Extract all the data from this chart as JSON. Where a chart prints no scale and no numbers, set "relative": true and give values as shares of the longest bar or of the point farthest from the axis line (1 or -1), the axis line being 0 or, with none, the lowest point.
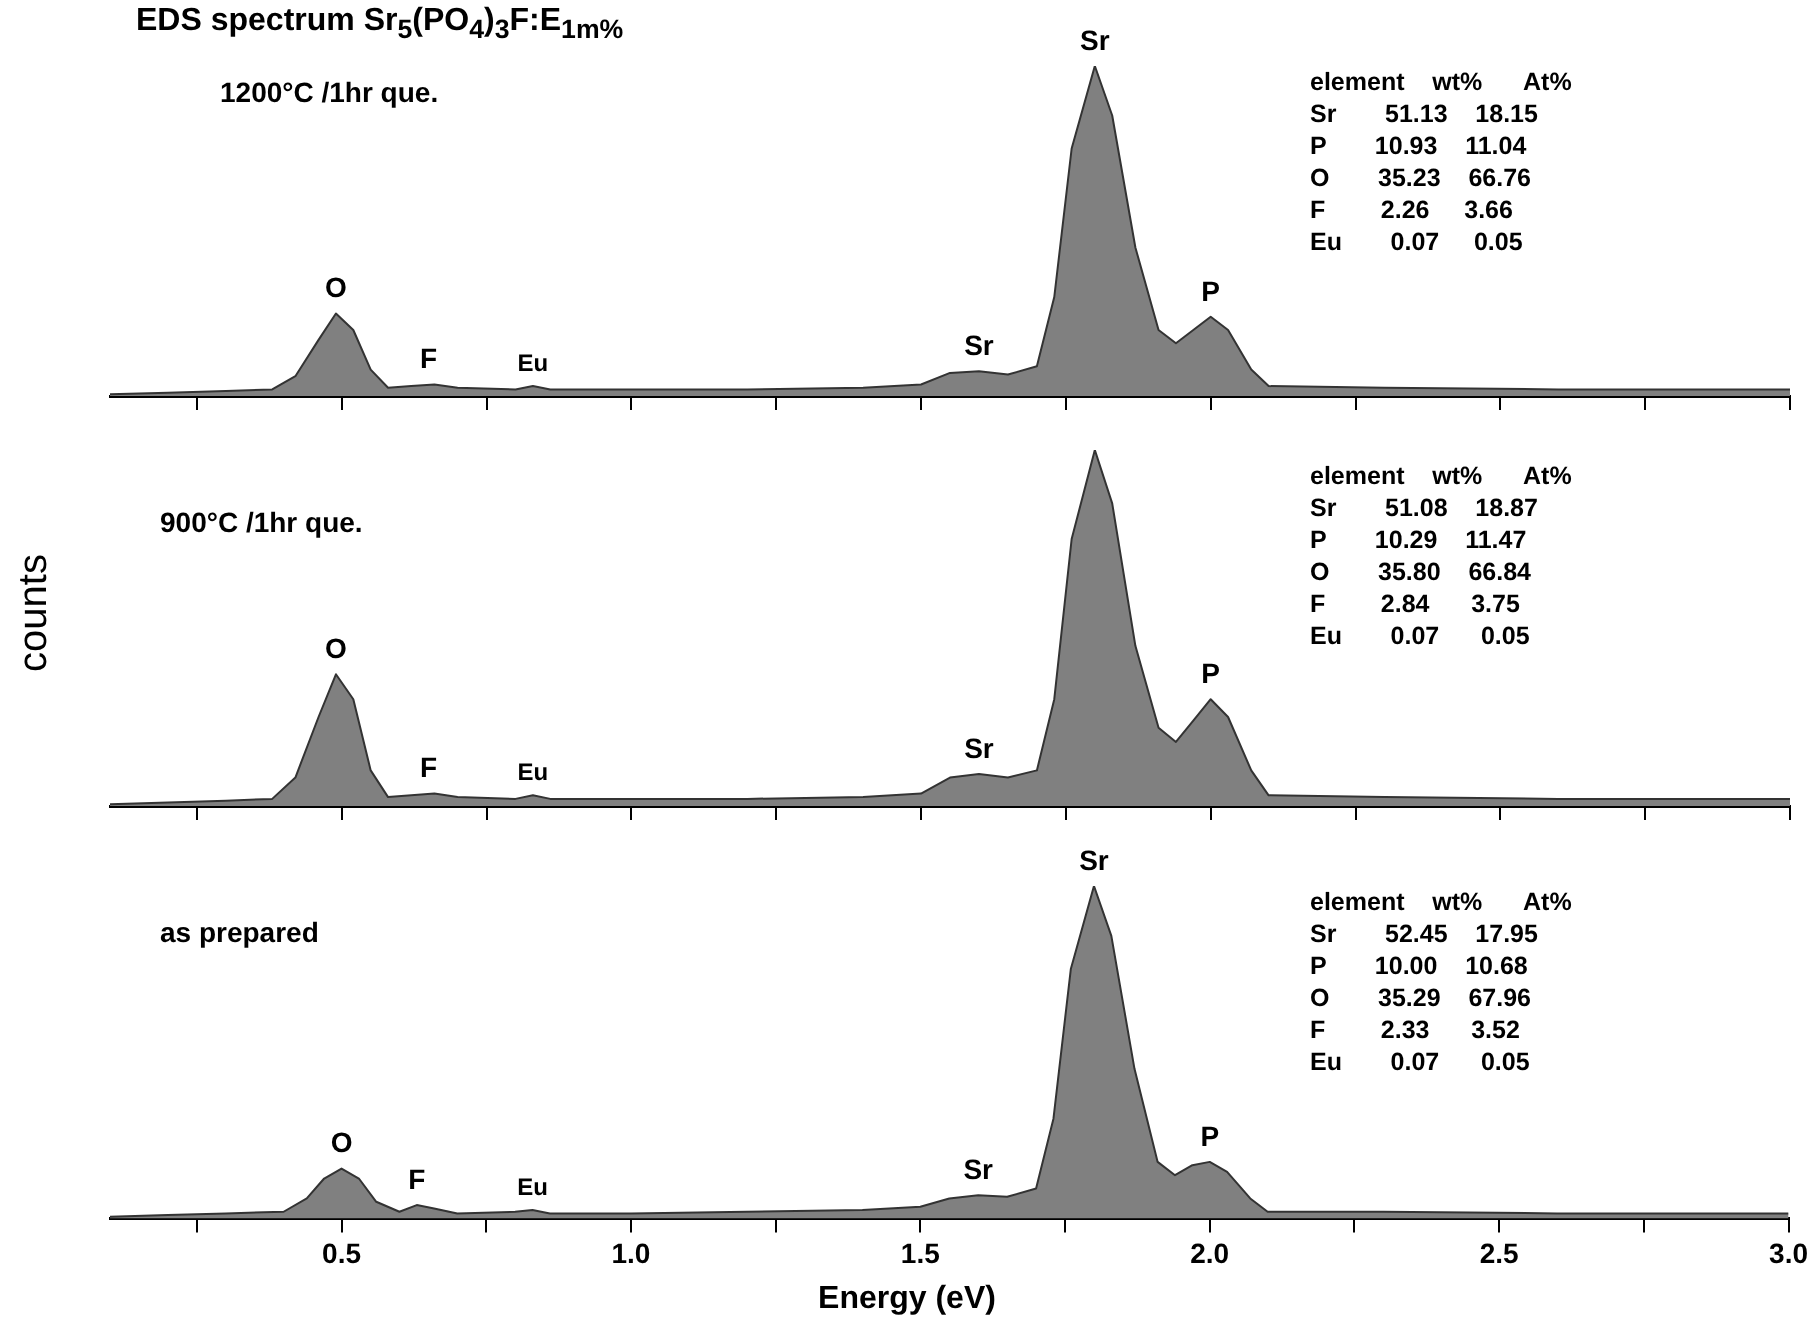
{
  "chart_data": [
    {
      "type": "area",
      "title": "EDS spectrum Sr$_{5}$(PO$_{4}$)$_{3}$F:E$_{1m%}$",
      "relative": true,
      "tick_labels": false,
      "xlim": [
        0.1,
        3.0
      ],
      "xticks": [
        {
          "value": 0.25,
          "label": null
        },
        {
          "value": 0.5,
          "label": null
        },
        {
          "value": 0.75,
          "label": null
        },
        {
          "value": 1,
          "label": null
        },
        {
          "value": 1.25,
          "label": null
        },
        {
          "value": 1.5,
          "label": null
        },
        {
          "value": 1.75,
          "label": null
        },
        {
          "value": 2,
          "label": null
        },
        {
          "value": 2.25,
          "label": null
        },
        {
          "value": 2.5,
          "label": null
        },
        {
          "value": 2.75,
          "label": null
        },
        {
          "value": 3,
          "label": null
        }
      ],
      "series": [
        {
          "color": "#808080",
          "x": [
            0.1,
            0.2,
            0.3,
            0.38,
            0.42,
            0.46,
            0.49,
            0.52,
            0.55,
            0.58,
            0.62,
            0.66,
            0.7,
            0.8,
            0.83,
            0.86,
            1.0,
            1.2,
            1.4,
            1.5,
            1.55,
            1.6,
            1.65,
            1.7,
            1.73,
            1.76,
            1.8,
            1.83,
            1.87,
            1.91,
            1.94,
            1.97,
            2.0,
            2.03,
            2.07,
            2.1,
            2.3,
            2.6,
            3.0
          ],
          "values": [
            0.005,
            0.01,
            0.015,
            0.02,
            0.06,
            0.17,
            0.25,
            0.2,
            0.08,
            0.025,
            0.03,
            0.035,
            0.025,
            0.02,
            0.03,
            0.02,
            0.02,
            0.02,
            0.025,
            0.035,
            0.07,
            0.075,
            0.065,
            0.09,
            0.3,
            0.75,
            1,
            0.85,
            0.45,
            0.2,
            0.16,
            0.2,
            0.24,
            0.2,
            0.08,
            0.03,
            0.025,
            0.02,
            0.02
          ]
        }
      ],
      "annotations": [
        "1200°C /1hr que.",
        {
          "text": "O",
          "x": 0.49,
          "y": 0.25
        },
        {
          "text": "F",
          "x": 0.65,
          "y": 0.035
        },
        {
          "text": "Eu",
          "x": 0.83,
          "y": 0.03
        },
        {
          "text": "Sr",
          "x": 1.6,
          "y": 0.075
        },
        {
          "text": "Sr",
          "x": 1.8,
          "y": 1
        },
        {
          "text": "P",
          "x": 2.0,
          "y": 0.24
        },
        "element    wt%      At%",
        "Sr       51.13    18.15",
        "P       10.93    11.04",
        "O       35.23    66.76",
        "F        2.26     3.66",
        "Eu       0.07     0.05"
      ]
    },
    {
      "type": "area",
      "ylabel": "counts",
      "relative": true,
      "tick_labels": false,
      "xlim": [
        0.1,
        3.0
      ],
      "xticks": [
        {
          "value": 0.25,
          "label": null
        },
        {
          "value": 0.5,
          "label": null
        },
        {
          "value": 0.75,
          "label": null
        },
        {
          "value": 1,
          "label": null
        },
        {
          "value": 1.25,
          "label": null
        },
        {
          "value": 1.5,
          "label": null
        },
        {
          "value": 1.75,
          "label": null
        },
        {
          "value": 2,
          "label": null
        },
        {
          "value": 2.25,
          "label": null
        },
        {
          "value": 2.5,
          "label": null
        },
        {
          "value": 2.75,
          "label": null
        },
        {
          "value": 3,
          "label": null
        }
      ],
      "series": [
        {
          "color": "#808080",
          "x": [
            0.1,
            0.2,
            0.3,
            0.38,
            0.42,
            0.46,
            0.49,
            0.52,
            0.55,
            0.58,
            0.62,
            0.66,
            0.7,
            0.8,
            0.83,
            0.86,
            1.0,
            1.2,
            1.4,
            1.5,
            1.55,
            1.6,
            1.65,
            1.7,
            1.73,
            1.76,
            1.8,
            1.83,
            1.87,
            1.91,
            1.94,
            1.97,
            2.0,
            2.03,
            2.07,
            2.1,
            2.3,
            2.6,
            3.0
          ],
          "values": [
            0.005,
            0.01,
            0.015,
            0.02,
            0.08,
            0.25,
            0.37,
            0.3,
            0.1,
            0.025,
            0.03,
            0.035,
            0.025,
            0.02,
            0.03,
            0.02,
            0.02,
            0.02,
            0.025,
            0.035,
            0.08,
            0.09,
            0.08,
            0.1,
            0.3,
            0.75,
            1,
            0.85,
            0.45,
            0.22,
            0.18,
            0.24,
            0.3,
            0.25,
            0.1,
            0.03,
            0.025,
            0.02,
            0.02
          ]
        }
      ],
      "annotations": [
        "900°C /1hr que.",
        {
          "text": "O",
          "x": 0.49,
          "y": 0.37
        },
        {
          "text": "F",
          "x": 0.65,
          "y": 0.035
        },
        {
          "text": "Eu",
          "x": 0.83,
          "y": 0.03
        },
        {
          "text": "Sr",
          "x": 1.6,
          "y": 0.09
        },
        {
          "text": "P",
          "x": 2.0,
          "y": 0.3
        },
        "element    wt%      At%",
        "Sr       51.08    18.87",
        "P       10.29    11.47",
        "O       35.80    66.84",
        "F        2.84      3.75",
        "Eu       0.07      0.05"
      ]
    },
    {
      "type": "area",
      "xlabel": "Energy (eV)",
      "relative": true,
      "tick_labels": "x",
      "xlim": [
        0.1,
        3.0
      ],
      "xticks": [
        {
          "value": 0.25,
          "label": null
        },
        {
          "value": 0.5,
          "label": "0.5"
        },
        {
          "value": 0.75,
          "label": null
        },
        {
          "value": 1,
          "label": "1.0"
        },
        {
          "value": 1.25,
          "label": null
        },
        {
          "value": 1.5,
          "label": "1.5"
        },
        {
          "value": 1.75,
          "label": null
        },
        {
          "value": 2,
          "label": "2.0"
        },
        {
          "value": 2.25,
          "label": null
        },
        {
          "value": 2.5,
          "label": "2.5"
        },
        {
          "value": 2.75,
          "label": null
        },
        {
          "value": 3,
          "label": "3.0"
        }
      ],
      "series": [
        {
          "color": "#808080",
          "x": [
            0.1,
            0.2,
            0.3,
            0.4,
            0.44,
            0.47,
            0.5,
            0.53,
            0.56,
            0.6,
            0.63,
            0.66,
            0.7,
            0.8,
            0.83,
            0.86,
            1.0,
            1.2,
            1.4,
            1.5,
            1.55,
            1.6,
            1.65,
            1.7,
            1.73,
            1.76,
            1.8,
            1.83,
            1.87,
            1.91,
            1.94,
            1.97,
            2.0,
            2.03,
            2.07,
            2.1,
            2.3,
            2.6,
            3.0
          ],
          "values": [
            0.005,
            0.01,
            0.015,
            0.02,
            0.06,
            0.12,
            0.15,
            0.12,
            0.05,
            0.02,
            0.04,
            0.03,
            0.015,
            0.02,
            0.025,
            0.015,
            0.015,
            0.02,
            0.025,
            0.035,
            0.06,
            0.07,
            0.065,
            0.09,
            0.3,
            0.75,
            1,
            0.85,
            0.45,
            0.17,
            0.13,
            0.16,
            0.17,
            0.14,
            0.06,
            0.02,
            0.02,
            0.015,
            0.015
          ]
        }
      ],
      "annotations": [
        "as prepared",
        {
          "text": "O",
          "x": 0.5,
          "y": 0.15
        },
        {
          "text": "F",
          "x": 0.63,
          "y": 0.04
        },
        {
          "text": "Eu",
          "x": 0.83,
          "y": 0.025
        },
        {
          "text": "Sr",
          "x": 1.6,
          "y": 0.07
        },
        {
          "text": "Sr",
          "x": 1.8,
          "y": 1
        },
        {
          "text": "P",
          "x": 2.0,
          "y": 0.17
        },
        "element    wt%      At%",
        "Sr       52.45    17.95",
        "P       10.00    10.68",
        "O       35.29    67.96",
        "F        2.33      3.52",
        "Eu       0.07      0.05"
      ]
    }
  ]
}
